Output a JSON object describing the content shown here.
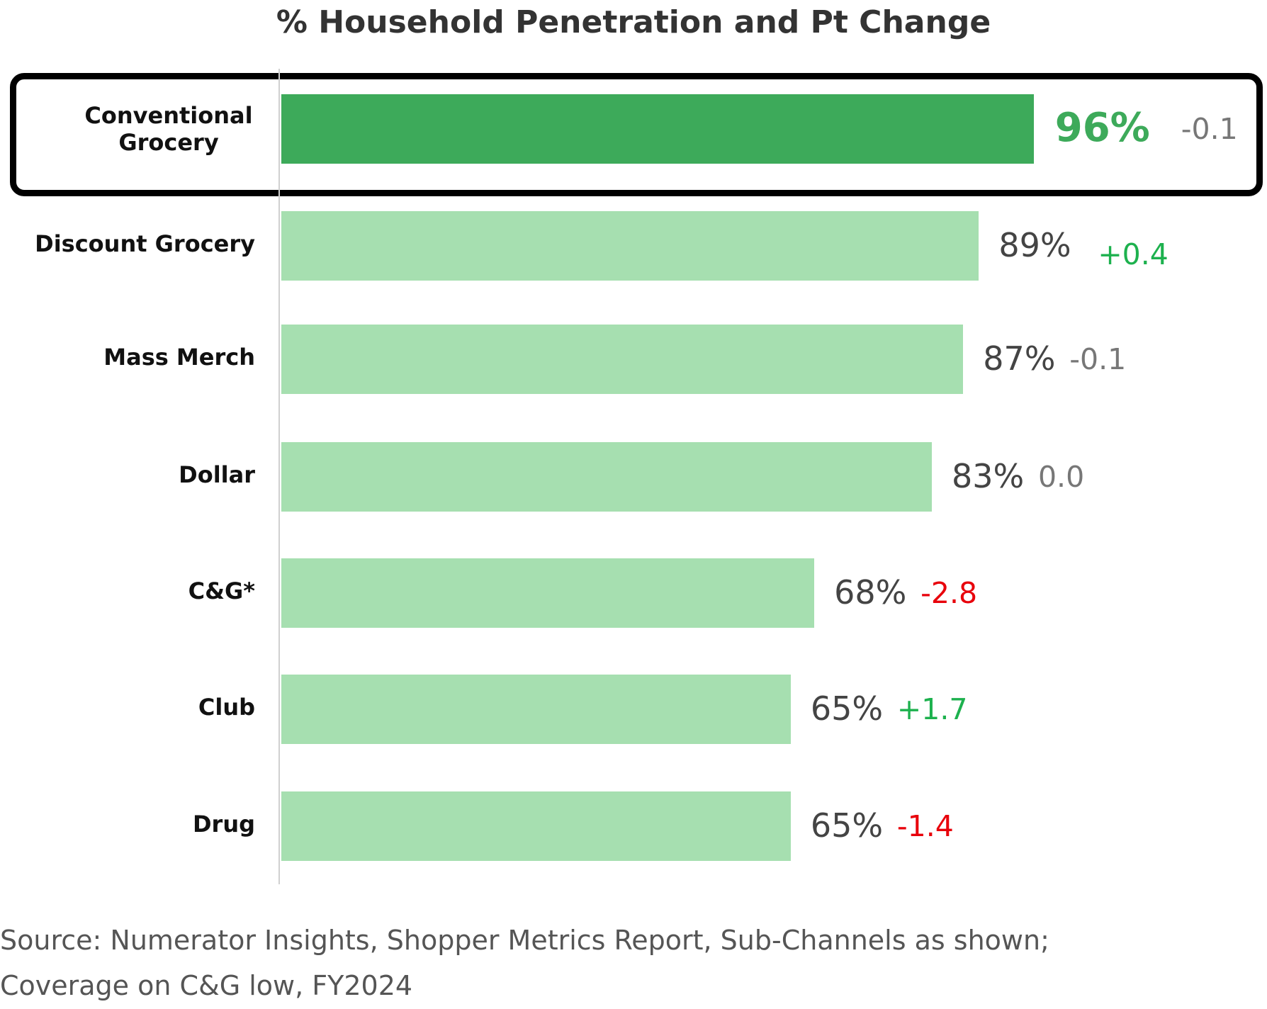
{
  "chart_data": {
    "type": "bar",
    "orientation": "horizontal",
    "title": "% Household Penetration and Pt Change",
    "categories": [
      "Conventional Grocery",
      "Discount Grocery",
      "Mass Merch",
      "Dollar",
      "C&G*",
      "Club",
      "Drug"
    ],
    "values": [
      96,
      89,
      87,
      83,
      68,
      65,
      65
    ],
    "value_labels": [
      "96%",
      "89%",
      "87%",
      "83%",
      "68%",
      "65%",
      "65%"
    ],
    "pt_change": [
      -0.1,
      0.4,
      -0.1,
      0.0,
      -2.8,
      1.7,
      -1.4
    ],
    "pt_change_labels": [
      "-0.1",
      "+0.4",
      "-0.1",
      "0.0",
      "-2.8",
      "+1.7",
      "-1.4"
    ],
    "highlighted_category": "Conventional Grocery",
    "xlim": [
      0,
      100
    ],
    "grid": false,
    "colors": {
      "highlight_bar": "#3daa5a",
      "bar": "#a6dfb0",
      "change_positive": "#1db14e",
      "change_negative": "#e8000b",
      "change_neutral": "#777777"
    }
  },
  "footer": {
    "line1": "Source: Numerator Insights, Shopper Metrics Report, Sub-Channels as shown;",
    "line2": "Coverage on C&G low, FY2024"
  }
}
